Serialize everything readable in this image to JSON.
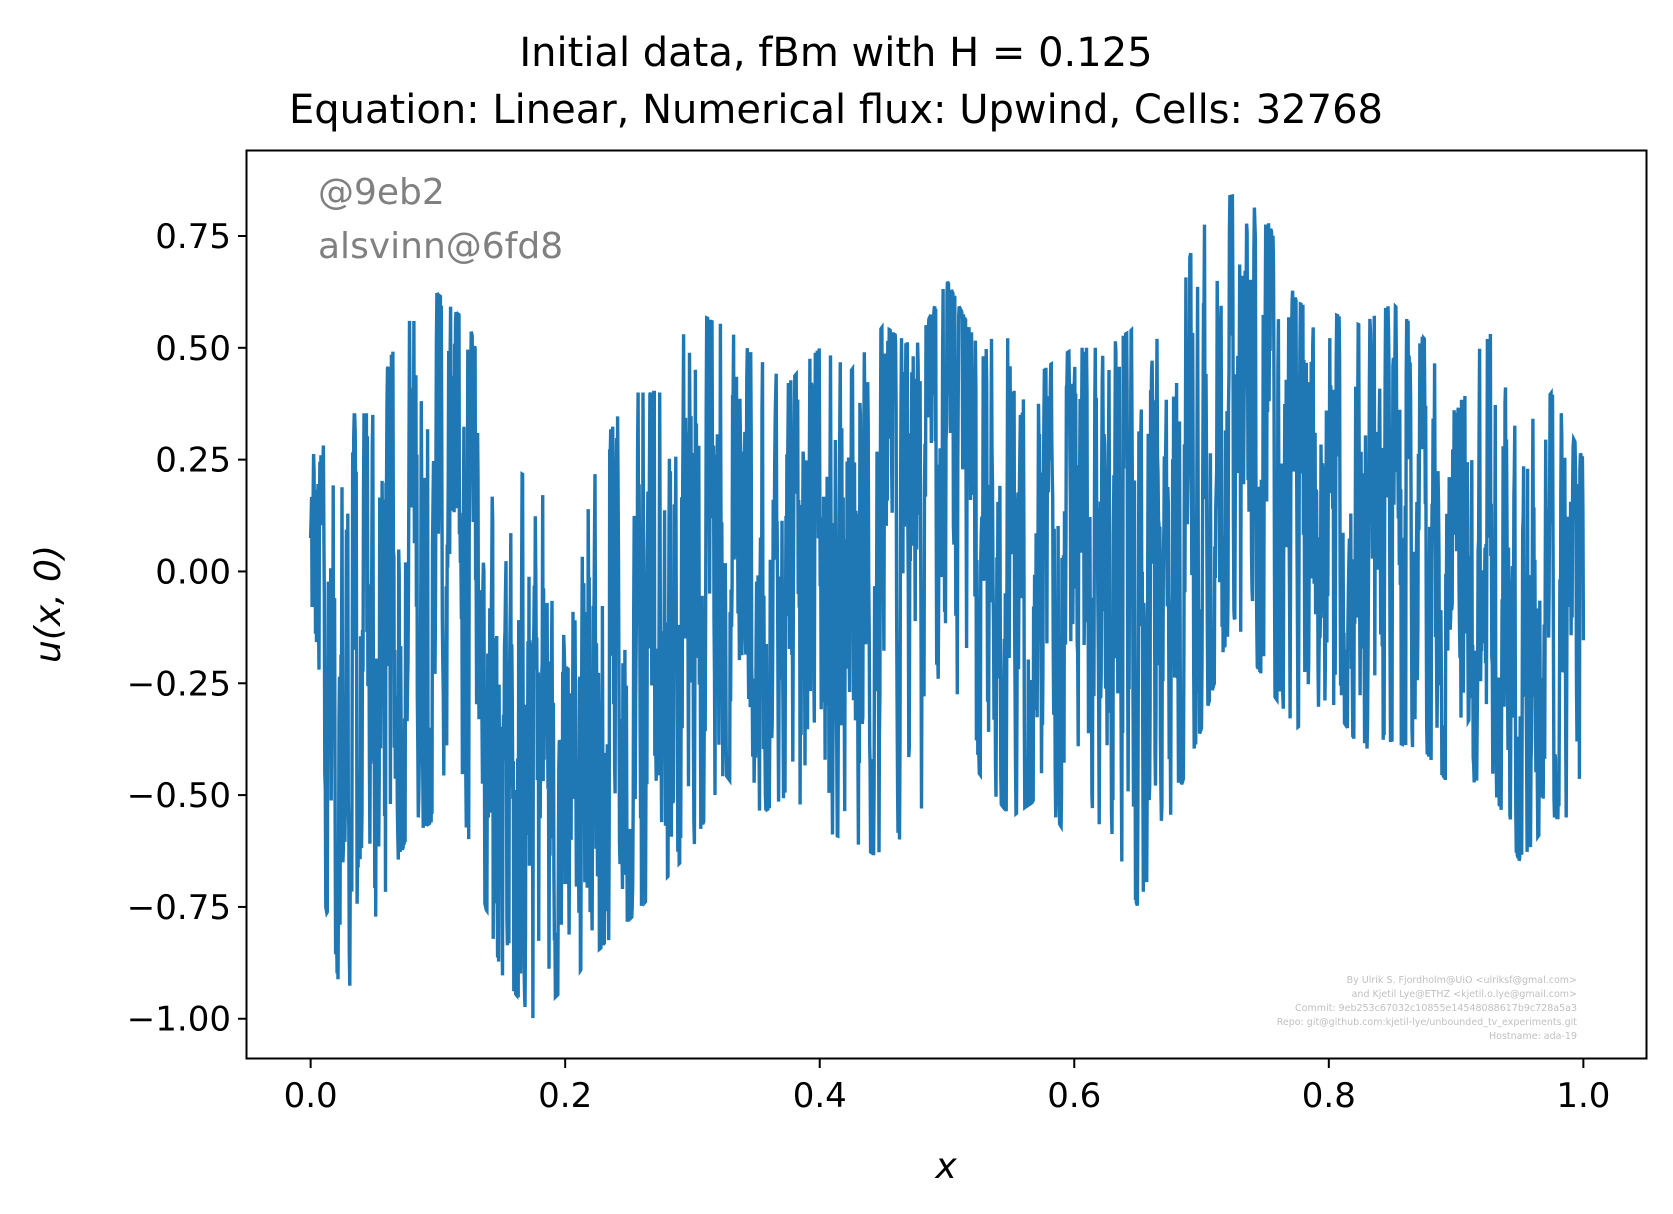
{
  "chart_data": {
    "type": "line",
    "title_line1": "Initial data, fBm with H = 0.125",
    "title_line2": "Equation: Linear, Numerical flux: Upwind, Cells: 32768",
    "xlabel": "x",
    "ylabel": "u(x, 0)",
    "xlim": [
      -0.05,
      1.05
    ],
    "ylim": [
      -1.09,
      0.94
    ],
    "xticks": [
      "0.0",
      "0.2",
      "0.4",
      "0.6",
      "0.8",
      "1.0"
    ],
    "yticks": [
      "0.75",
      "0.50",
      "0.25",
      "0.00",
      "−0.25",
      "−0.50",
      "−0.75",
      "−1.00"
    ],
    "grid": false,
    "series": [
      {
        "color": "#1f77b4",
        "x": [
          0.0,
          0.025,
          0.05,
          0.075,
          0.1,
          0.125,
          0.15,
          0.175,
          0.2,
          0.225,
          0.25,
          0.275,
          0.3,
          0.325,
          0.35,
          0.375,
          0.4,
          0.425,
          0.45,
          0.475,
          0.5,
          0.525,
          0.55,
          0.575,
          0.6,
          0.625,
          0.65,
          0.675,
          0.7,
          0.725,
          0.75,
          0.775,
          0.8,
          0.825,
          0.85,
          0.875,
          0.9,
          0.925,
          0.95,
          0.975,
          1.0
        ],
        "y_mean": [
          0.0,
          -0.35,
          -0.3,
          0.0,
          0.1,
          -0.05,
          -0.3,
          -0.45,
          -0.35,
          -0.3,
          -0.3,
          -0.15,
          0.0,
          0.0,
          -0.1,
          -0.05,
          0.0,
          -0.1,
          0.0,
          0.1,
          0.15,
          0.0,
          0.0,
          0.05,
          0.05,
          0.0,
          0.05,
          -0.05,
          0.25,
          0.35,
          0.3,
          0.1,
          0.1,
          0.05,
          0.2,
          0.15,
          -0.15,
          -0.1,
          -0.25,
          -0.1,
          -0.1
        ],
        "y_max": [
          0.3,
          0.35,
          0.35,
          0.6,
          0.62,
          0.55,
          0.25,
          0.2,
          0.1,
          0.25,
          0.4,
          0.4,
          0.58,
          0.55,
          0.48,
          0.42,
          0.5,
          0.45,
          0.55,
          0.5,
          0.65,
          0.5,
          0.55,
          0.45,
          0.5,
          0.5,
          0.55,
          0.5,
          0.82,
          0.84,
          0.8,
          0.6,
          0.58,
          0.55,
          0.6,
          0.52,
          0.35,
          0.55,
          0.3,
          0.4,
          0.25
        ],
        "y_min": [
          -0.55,
          -0.97,
          -0.78,
          -0.6,
          -0.55,
          -0.6,
          -0.9,
          -1.0,
          -0.93,
          -0.85,
          -0.78,
          -0.7,
          -0.62,
          -0.45,
          -0.55,
          -0.5,
          -0.58,
          -0.6,
          -0.65,
          -0.55,
          -0.45,
          -0.45,
          -0.55,
          -0.5,
          -0.62,
          -0.55,
          -0.75,
          -0.55,
          -0.35,
          -0.1,
          -0.25,
          -0.35,
          -0.28,
          -0.4,
          -0.38,
          -0.4,
          -0.5,
          -0.45,
          -0.65,
          -0.55,
          -0.55
        ]
      }
    ],
    "annotations": [
      "@9eb2",
      "alsvinn@6fd8"
    ],
    "credit_lines": [
      "By Ulrik S. Fjordholm@UiO <ulriksf@gmal.com>",
      "and Kjetil Lye@ETHZ <kjetil.o.lye@gmail.com>",
      "Commit: 9eb253c67032c10855e14548088617b9c728a5a3",
      "Repo: git@github.com:kjetil-lye/unbounded_tv_experiments.git",
      "Hostname: ada-19"
    ]
  }
}
